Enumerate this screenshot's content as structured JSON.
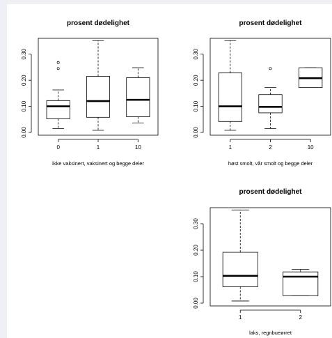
{
  "chart_data": [
    {
      "type": "box",
      "title": "prosent dødelighet",
      "xlabel": "ikke vaksinert, vaksinert og begge deler",
      "ylabel": "",
      "ylim": [
        0,
        0.35
      ],
      "yticks": [
        "0.00",
        "0.10",
        "0.20",
        "0.30"
      ],
      "yticks_values": [
        0,
        0.1,
        0.2,
        0.3
      ],
      "categories": [
        "0",
        "1",
        "10"
      ],
      "boxes": [
        {
          "min": 0.015,
          "q1": 0.052,
          "median": 0.1,
          "q3": 0.122,
          "max": 0.163,
          "outliers": [
            0.245,
            0.268
          ]
        },
        {
          "min": 0.008,
          "q1": 0.058,
          "median": 0.12,
          "q3": 0.215,
          "max": 0.352,
          "outliers": []
        },
        {
          "min": 0.036,
          "q1": 0.06,
          "median": 0.125,
          "q3": 0.21,
          "max": 0.248,
          "outliers": []
        }
      ]
    },
    {
      "type": "box",
      "title": "prosent dødelighet",
      "xlabel": "høst smolt, vår smolt og begge deler",
      "ylabel": "",
      "ylim": [
        0,
        0.35
      ],
      "yticks": [
        "0.00",
        "0.10",
        "0.20",
        "0.30"
      ],
      "yticks_values": [
        0,
        0.1,
        0.2,
        0.3
      ],
      "categories": [
        "1",
        "2",
        "10"
      ],
      "boxes": [
        {
          "min": 0.008,
          "q1": 0.042,
          "median": 0.1,
          "q3": 0.228,
          "max": 0.352,
          "outliers": []
        },
        {
          "min": 0.015,
          "q1": 0.075,
          "median": 0.098,
          "q3": 0.145,
          "max": 0.172,
          "outliers": [
            0.245
          ]
        },
        {
          "min": 0.172,
          "q1": 0.172,
          "median": 0.208,
          "q3": 0.248,
          "max": 0.248,
          "outliers": []
        }
      ]
    },
    {
      "type": "box",
      "title": "prosent dødelighet",
      "xlabel": "laks, regnbueørret",
      "ylabel": "",
      "ylim": [
        0,
        0.35
      ],
      "yticks": [
        "0.00",
        "0.10",
        "0.20",
        "0.30"
      ],
      "yticks_values": [
        0,
        0.1,
        0.2,
        0.3
      ],
      "categories": [
        "1",
        "2"
      ],
      "boxes": [
        {
          "min": 0.008,
          "q1": 0.062,
          "median": 0.103,
          "q3": 0.192,
          "max": 0.352,
          "outliers": []
        },
        {
          "min": 0.028,
          "q1": 0.028,
          "median": 0.1,
          "q3": 0.118,
          "max": 0.128,
          "outliers": []
        }
      ]
    }
  ]
}
